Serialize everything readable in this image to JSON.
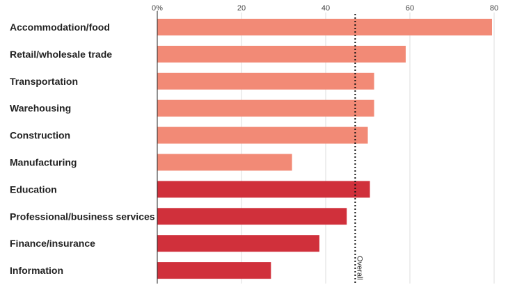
{
  "chart_data": {
    "type": "bar",
    "orientation": "horizontal",
    "categories": [
      "Accommodation/food",
      "Retail/wholesale trade",
      "Transportation",
      "Warehousing",
      "Construction",
      "Manufacturing",
      "Education",
      "Professional/business services",
      "Finance/insurance",
      "Information"
    ],
    "values": [
      79.5,
      59,
      51.5,
      51.5,
      50,
      32,
      50.5,
      45,
      38.5,
      27
    ],
    "bar_colors": [
      "#f28a76",
      "#f28a76",
      "#f28a76",
      "#f28a76",
      "#f28a76",
      "#f28a76",
      "#d0303b",
      "#d0303b",
      "#d0303b",
      "#d0303b"
    ],
    "xlim": [
      0,
      80
    ],
    "xticks": [
      0,
      20,
      40,
      60,
      80
    ],
    "xtick_labels": [
      "0%",
      "20",
      "40",
      "60",
      "80"
    ],
    "reference_line": {
      "label": "Overall",
      "value": 47
    },
    "grid": "vertical",
    "grid_color": "#dddddd"
  }
}
